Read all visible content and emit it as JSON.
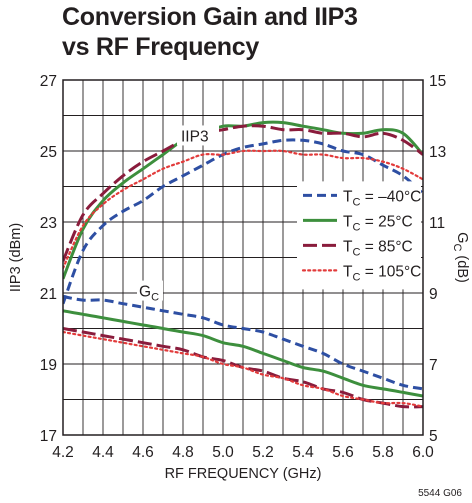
{
  "title_lines": [
    "Conversion Gain and IIP3",
    "vs RF Frequency"
  ],
  "figure_id": "5544 G06",
  "chart_data": {
    "type": "line",
    "title": "Conversion Gain and IIP3 vs RF Frequency",
    "xlabel": "RF FREQUENCY (GHz)",
    "ylabel_left": "IIP3 (dBm)",
    "ylabel_right": "G",
    "ylabel_right_sub": "C",
    "ylabel_right_unit": "(dB)",
    "xlim": [
      4.2,
      6.0
    ],
    "ylim_left": [
      17,
      27
    ],
    "ylim_right": [
      5,
      15
    ],
    "x_ticks": [
      "4.2",
      "4.4",
      "4.6",
      "4.8",
      "5.0",
      "5.2",
      "5.4",
      "5.6",
      "5.8",
      "6.0"
    ],
    "y_left_ticks": [
      "17",
      "19",
      "21",
      "23",
      "25",
      "27"
    ],
    "y_right_ticks": [
      "5",
      "7",
      "9",
      "11",
      "13",
      "15"
    ],
    "grid": true,
    "legend_position": "right-center",
    "annotations": [
      {
        "label": "IIP3",
        "sub": ""
      },
      {
        "label": "G",
        "sub": "C"
      }
    ],
    "x": [
      4.2,
      4.3,
      4.4,
      4.5,
      4.6,
      4.7,
      4.8,
      4.9,
      5.0,
      5.1,
      5.2,
      5.3,
      5.4,
      5.5,
      5.6,
      5.7,
      5.8,
      5.9,
      6.0
    ],
    "series": [
      {
        "name": "TC = –40°C",
        "legend_main": "T",
        "legend_sub": "C",
        "legend_rest": " = –40°C",
        "color": "#2e4fa3",
        "style": "dashed",
        "iip3_dBm": [
          20.7,
          22.2,
          22.9,
          23.3,
          23.6,
          24.0,
          24.3,
          24.6,
          24.9,
          25.1,
          25.2,
          25.3,
          25.3,
          25.2,
          25.0,
          24.9,
          24.6,
          24.3,
          23.8
        ],
        "gc_dB": [
          8.9,
          8.8,
          8.8,
          8.7,
          8.6,
          8.5,
          8.4,
          8.3,
          8.1,
          8.0,
          7.9,
          7.7,
          7.5,
          7.3,
          7.0,
          6.8,
          6.6,
          6.4,
          6.3
        ]
      },
      {
        "name": "TC = 25°C",
        "legend_main": "T",
        "legend_sub": "C",
        "legend_rest": " = 25°C",
        "color": "#3d8f3d",
        "style": "solid",
        "iip3_dBm": [
          21.4,
          22.8,
          23.6,
          24.1,
          24.5,
          24.9,
          25.3,
          25.5,
          25.7,
          25.7,
          25.8,
          25.8,
          25.7,
          25.6,
          25.5,
          25.5,
          25.6,
          25.5,
          24.9
        ],
        "gc_dB": [
          8.5,
          8.4,
          8.3,
          8.2,
          8.1,
          8.0,
          7.9,
          7.8,
          7.6,
          7.5,
          7.3,
          7.1,
          6.9,
          6.8,
          6.6,
          6.4,
          6.3,
          6.2,
          6.1
        ]
      },
      {
        "name": "TC = 85°C",
        "legend_main": "T",
        "legend_sub": "C",
        "legend_rest": " = 85°C",
        "color": "#8a1c3c",
        "style": "longdash",
        "iip3_dBm": [
          21.9,
          23.2,
          23.8,
          24.3,
          24.7,
          25.0,
          25.3,
          25.5,
          25.6,
          25.7,
          25.7,
          25.6,
          25.6,
          25.5,
          25.5,
          25.4,
          25.5,
          25.3,
          24.9
        ],
        "gc_dB": [
          8.0,
          7.9,
          7.8,
          7.7,
          7.6,
          7.5,
          7.4,
          7.2,
          7.1,
          6.9,
          6.8,
          6.6,
          6.5,
          6.3,
          6.2,
          6.0,
          5.9,
          5.8,
          5.8
        ]
      },
      {
        "name": "TC = 105°C",
        "legend_main": "T",
        "legend_sub": "C",
        "legend_rest": " = 105°C",
        "color": "#e23b3b",
        "style": "dotted",
        "iip3_dBm": [
          21.7,
          22.9,
          23.5,
          23.9,
          24.2,
          24.5,
          24.7,
          24.9,
          24.9,
          25.0,
          25.0,
          25.0,
          24.9,
          24.9,
          24.8,
          24.8,
          24.7,
          24.5,
          24.2
        ],
        "gc_dB": [
          7.9,
          7.8,
          7.7,
          7.6,
          7.5,
          7.4,
          7.3,
          7.2,
          7.0,
          6.9,
          6.7,
          6.6,
          6.4,
          6.3,
          6.1,
          6.0,
          5.9,
          5.9,
          5.8
        ]
      }
    ]
  }
}
